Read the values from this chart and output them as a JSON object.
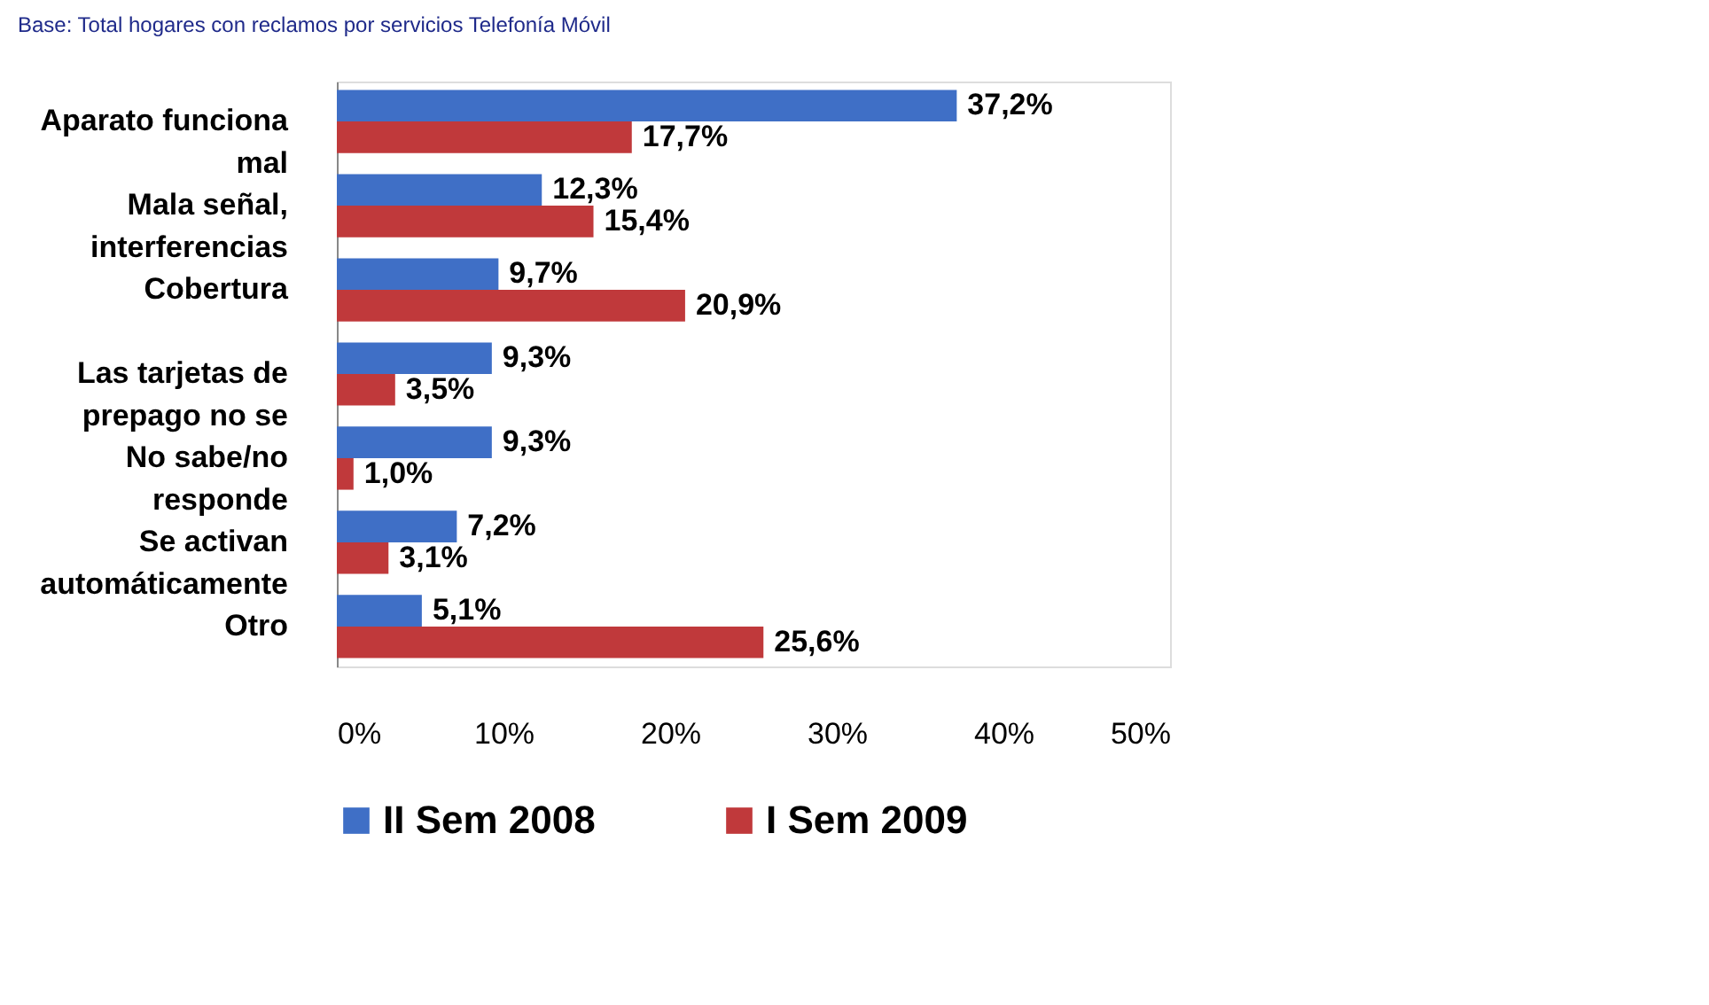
{
  "chart_data": {
    "type": "bar",
    "orientation": "horizontal",
    "title": "Base: Total hogares con reclamos por servicios Telefonía Móvil",
    "categories": [
      "Aparato funciona mal",
      "Mala señal, interferencias",
      "Cobertura",
      "Las tarjetas de prepago no se",
      "No sabe/no responde",
      "Se activan automáticamente",
      "Otro"
    ],
    "series": [
      {
        "name": "II Sem 2008",
        "color": "#3f6fc6",
        "values": [
          37.2,
          12.3,
          9.7,
          9.3,
          9.3,
          7.2,
          5.1
        ],
        "value_labels": [
          "37,2%",
          "12,3%",
          "9,7%",
          "9,3%",
          "9,3%",
          "7,2%",
          "5,1%"
        ]
      },
      {
        "name": "I Sem 2009",
        "color": "#c0393b",
        "values": [
          17.7,
          15.4,
          20.9,
          3.5,
          1.0,
          3.1,
          25.6
        ],
        "value_labels": [
          "17,7%",
          "15,4%",
          "20,9%",
          "3,5%",
          "1,0%",
          "3,1%",
          "25,6%"
        ]
      }
    ],
    "xlim": [
      0,
      50
    ],
    "xticks": [
      {
        "value": 0,
        "label": "0%"
      },
      {
        "value": 10,
        "label": "10%"
      },
      {
        "value": 20,
        "label": "20%"
      },
      {
        "value": 30,
        "label": "30%"
      },
      {
        "value": 40,
        "label": "40%"
      },
      {
        "value": 50,
        "label": "50%"
      }
    ],
    "grid": false,
    "legend": "bottom"
  }
}
